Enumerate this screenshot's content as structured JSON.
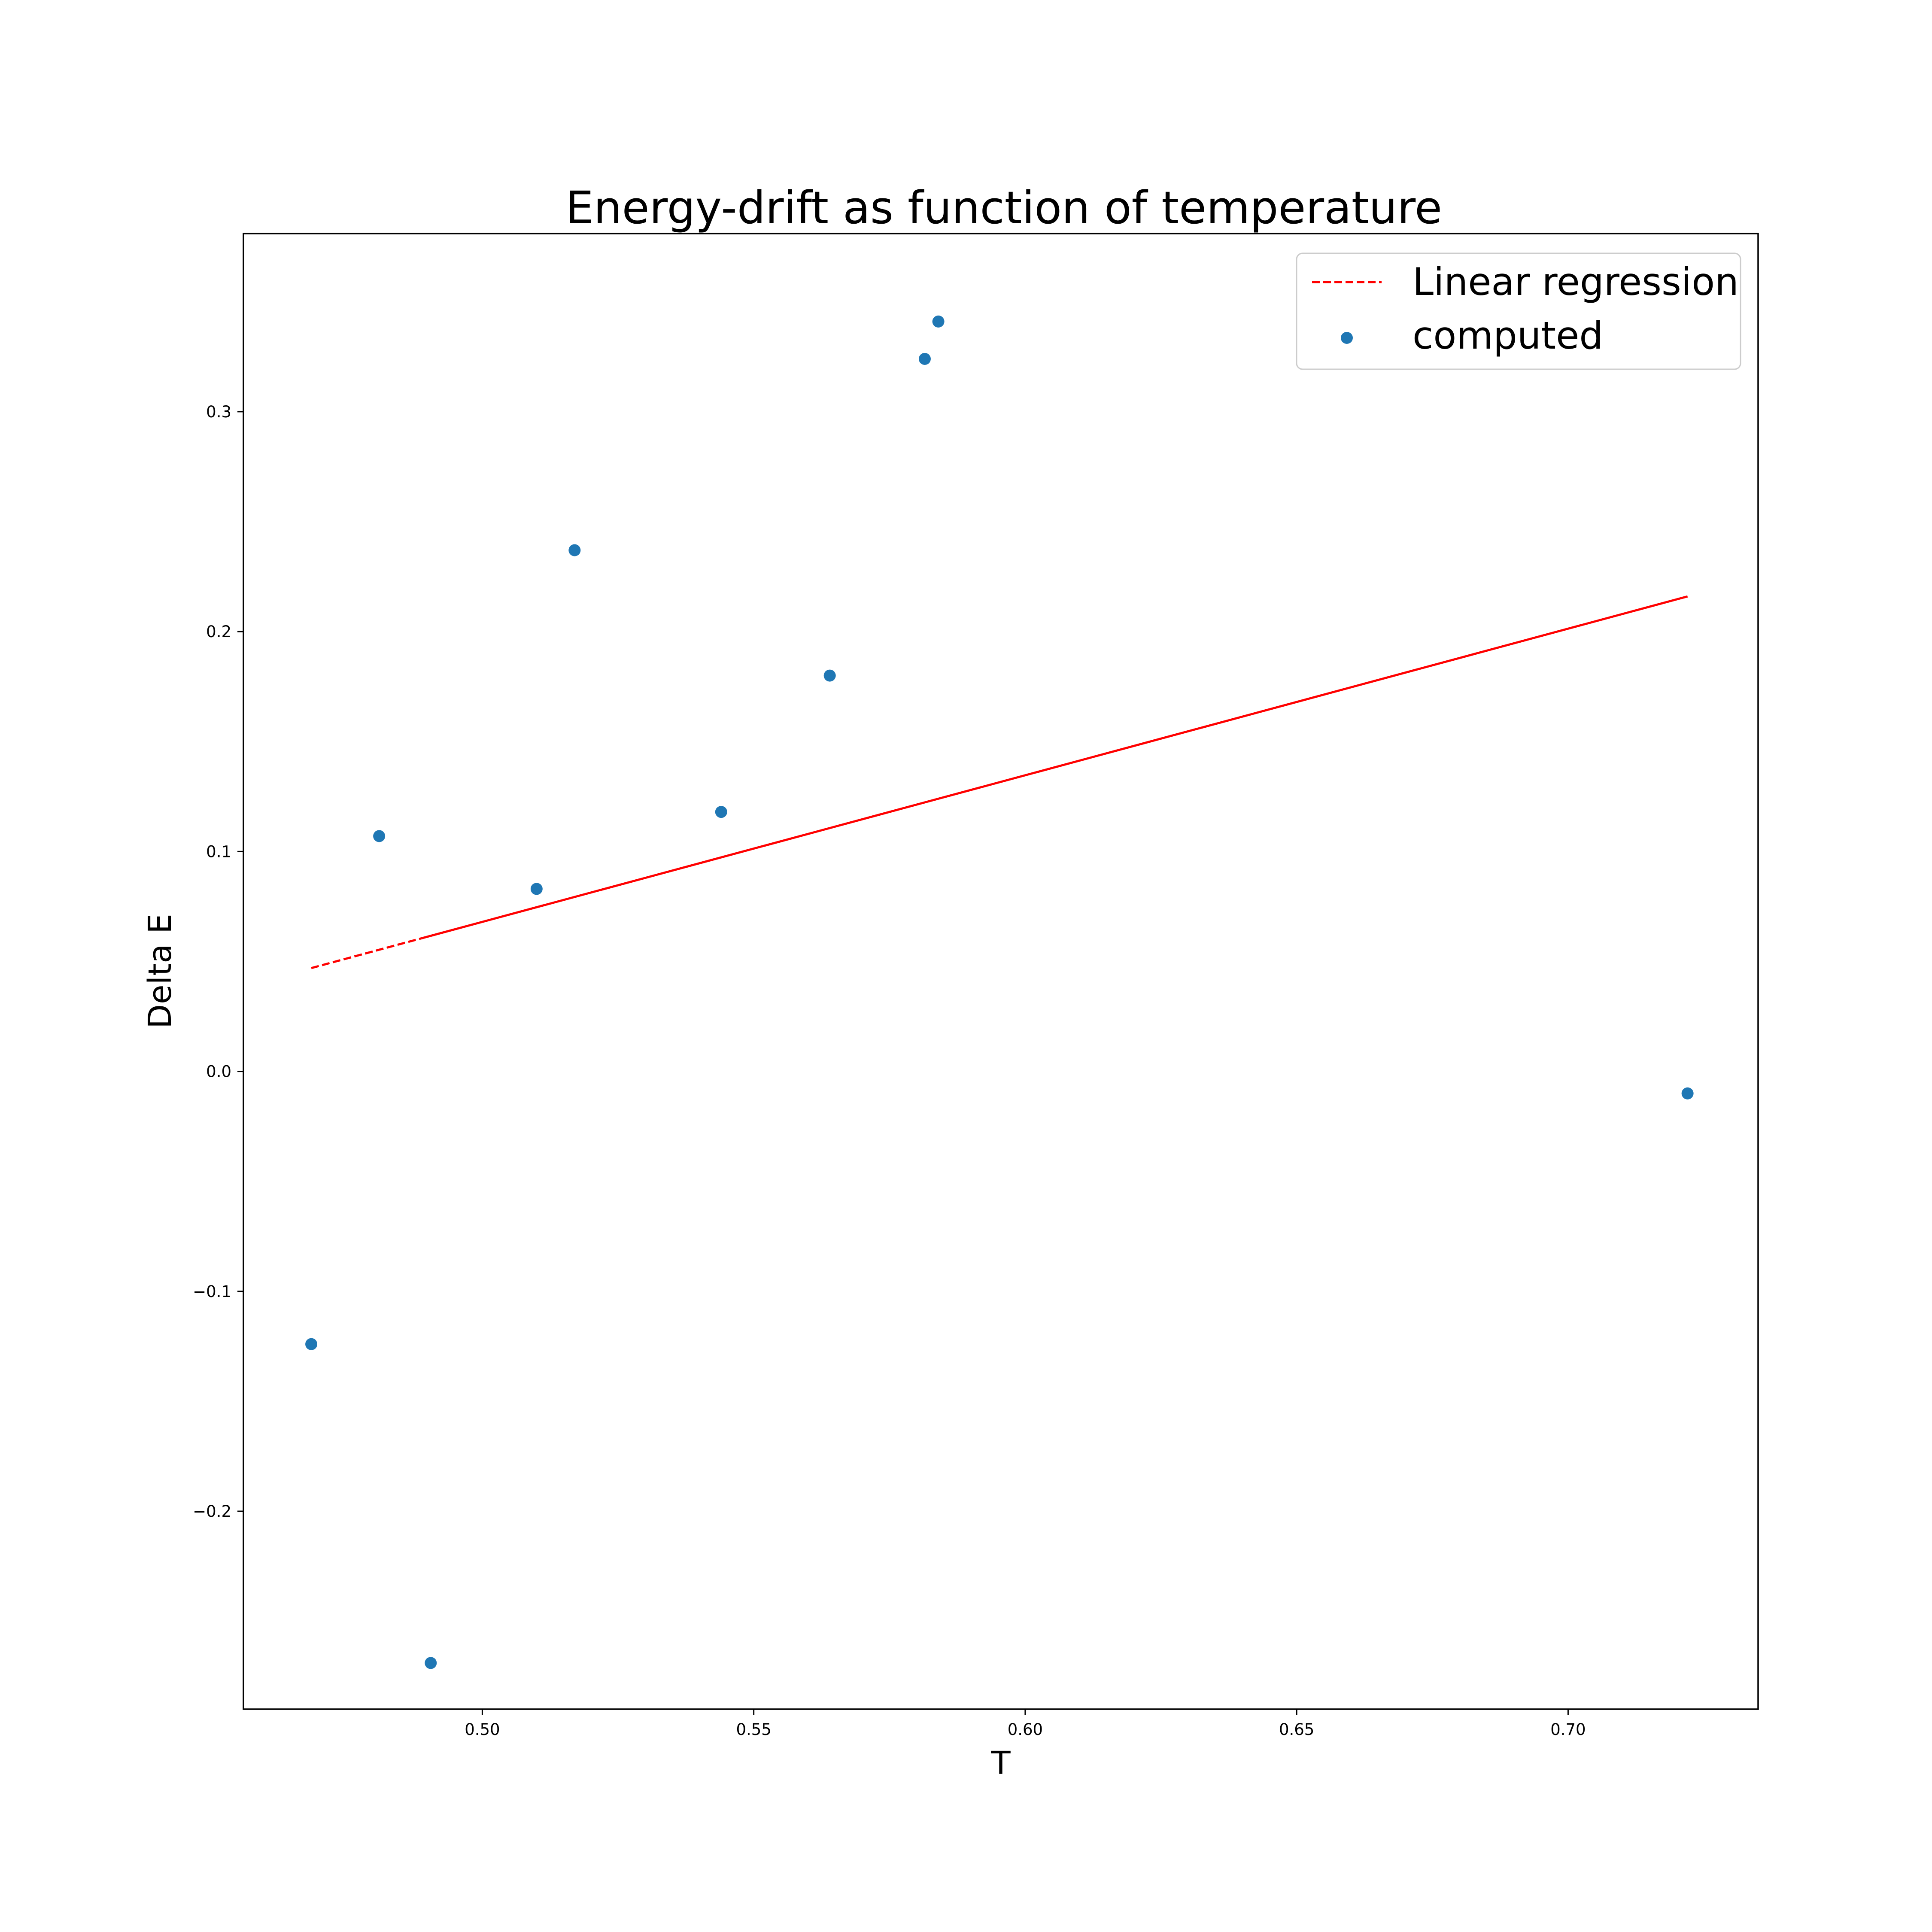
{
  "chart_data": {
    "type": "scatter",
    "title": "Energy-drift as function of temperature",
    "xlabel": "T",
    "ylabel": "Delta E",
    "xlim": [
      0.456,
      0.735
    ],
    "ylim": [
      -0.29,
      0.381
    ],
    "xticks": [
      {
        "value": 0.5,
        "label": "0.50"
      },
      {
        "value": 0.55,
        "label": "0.55"
      },
      {
        "value": 0.6,
        "label": "0.60"
      },
      {
        "value": 0.65,
        "label": "0.65"
      },
      {
        "value": 0.7,
        "label": "0.70"
      }
    ],
    "yticks": [
      {
        "value": -0.2,
        "label": "−0.2"
      },
      {
        "value": -0.1,
        "label": "−0.1"
      },
      {
        "value": 0.0,
        "label": "0.0"
      },
      {
        "value": 0.1,
        "label": "0.1"
      },
      {
        "value": 0.2,
        "label": "0.2"
      },
      {
        "value": 0.3,
        "label": "0.3"
      }
    ],
    "grid": false,
    "legend_position": "top-right",
    "series": [
      {
        "name": "Linear regression",
        "kind": "line",
        "color": "#ff0000",
        "points": [
          {
            "x": 0.4685,
            "y": 0.047
          },
          {
            "x": 0.722,
            "y": 0.216
          }
        ]
      },
      {
        "name": "computed",
        "kind": "scatter",
        "color": "#1f77b4",
        "points": [
          {
            "x": 0.4685,
            "y": -0.124
          },
          {
            "x": 0.481,
            "y": 0.107
          },
          {
            "x": 0.4905,
            "y": -0.269
          },
          {
            "x": 0.51,
            "y": 0.083
          },
          {
            "x": 0.517,
            "y": 0.237
          },
          {
            "x": 0.544,
            "y": 0.118
          },
          {
            "x": 0.564,
            "y": 0.18
          },
          {
            "x": 0.5815,
            "y": 0.324
          },
          {
            "x": 0.584,
            "y": 0.341
          },
          {
            "x": 0.722,
            "y": -0.01
          }
        ]
      }
    ]
  }
}
